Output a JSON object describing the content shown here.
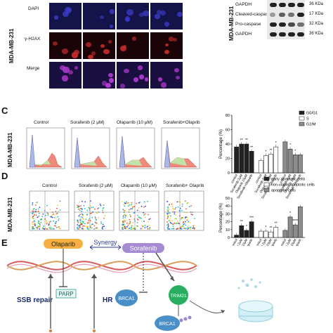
{
  "panel_b": {
    "rows": [
      "DAPI",
      "γ-H2AX",
      "Merge"
    ],
    "cell_line": "MDA-MB-231"
  },
  "western": {
    "cell_line": "MDA-MB-231",
    "rows": [
      {
        "name": "GAPDH",
        "kda": "36 KDa"
      },
      {
        "name": "Cleaved-caspase",
        "kda": "17 KDa"
      },
      {
        "name": "Pro-caspase",
        "kda": "32 KDa"
      },
      {
        "name": "GAPDH",
        "kda": "36 KDa"
      }
    ]
  },
  "panel_c": {
    "letter": "C",
    "cell_line": "MDA-MB-231",
    "conditions": [
      "Control",
      "Sorafenib (2 μM)",
      "Olaparrib (10 μM)",
      "Sorafenib+Olaprib"
    ]
  },
  "panel_d": {
    "letter": "D",
    "cell_line": "MDA-MB-231",
    "conditions": [
      "Control",
      "Sorafenib (2 μM)",
      "Olaparrib (10 μM)",
      "Sorafenib+ Olaprib"
    ]
  },
  "panel_e": {
    "letter": "E",
    "olaparib": "Olaparib",
    "synergy": "Synergy",
    "sorafenib": "Sorafenib",
    "parp": "PARP",
    "brca1": "BRCA1",
    "brca1_lower": "BRCA1",
    "trim21": "TRIM21",
    "ssb_repair": "SSB repair",
    "hr": "HR"
  },
  "chart_data": [
    {
      "type": "bar",
      "ylabel": "Percentage (%)",
      "ylim": [
        0,
        80
      ],
      "yticks": [
        0,
        20,
        40,
        60,
        80
      ],
      "legend_placement": "top-right",
      "groups": [
        "G0/G1",
        "S",
        "G2/M"
      ],
      "categories": [
        "control",
        "Sorafenib 2μM",
        "Olaparib 10μM",
        "Sorafenib+Olaparib"
      ],
      "series": [
        {
          "name": "G0/G1",
          "color": "#222222",
          "values": [
            36,
            40,
            40,
            30
          ]
        },
        {
          "name": "S",
          "color": "#ffffff",
          "values": [
            17,
            24,
            26,
            36
          ]
        },
        {
          "name": "G2/M",
          "color": "#8c8c8c",
          "values": [
            43,
            33,
            25,
            25
          ]
        }
      ],
      "annotations": [
        "**",
        "**",
        "**",
        "*",
        "**",
        "*",
        "*",
        "*"
      ]
    },
    {
      "type": "bar",
      "ylabel": "Percentage (%)",
      "ylim": [
        0,
        50
      ],
      "yticks": [
        0,
        10,
        20,
        30,
        40,
        50
      ],
      "legend_placement": "top-right",
      "groups": [
        "early apoptotic cells",
        "non-viable apoptotic cells",
        "apoptotic cells"
      ],
      "categories": [
        "control",
        "Sorafenib 2μM",
        "Olaparib 10μM",
        "Sorafenib+Olaparib"
      ],
      "series": [
        {
          "name": "early apoptotic cells",
          "color": "#222222",
          "values": [
            3,
            15,
            9,
            20
          ]
        },
        {
          "name": "non-viable apoptotic cells",
          "color": "#ffffff",
          "values": [
            8,
            8,
            7,
            13
          ]
        },
        {
          "name": "apoptotic cells",
          "color": "#8c8c8c",
          "values": [
            9,
            26,
            16,
            39
          ]
        }
      ],
      "annotations": [
        "**",
        "*",
        "***",
        "*",
        "**",
        "**",
        "*",
        "****"
      ]
    }
  ]
}
